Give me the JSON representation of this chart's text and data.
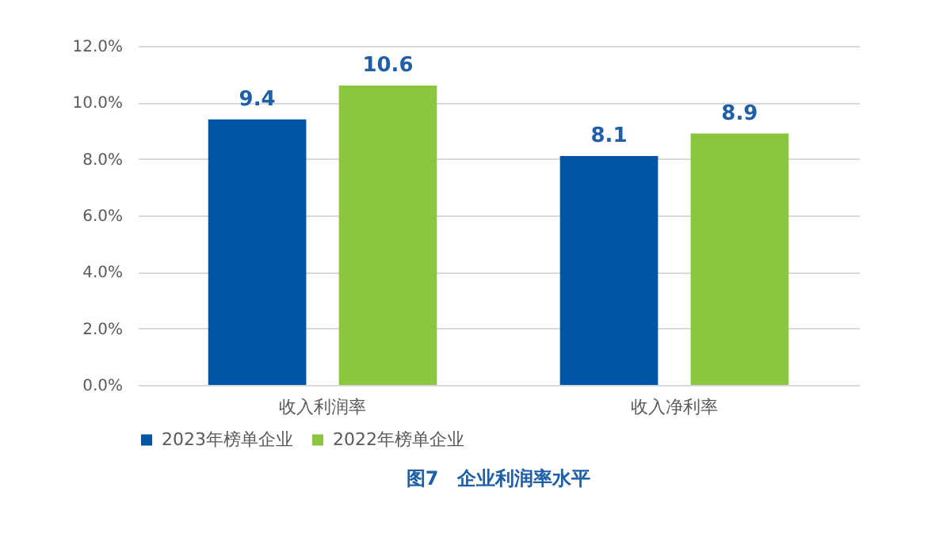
{
  "chart_data": {
    "type": "bar",
    "title": "图7　企业利润率水平",
    "categories": [
      "收入利润率",
      "收入净利率"
    ],
    "series": [
      {
        "name": "2023年榜单企业",
        "color": "#0056a4",
        "values": [
          9.4,
          8.1
        ]
      },
      {
        "name": "2022年榜单企业",
        "color": "#8cc63f",
        "values": [
          10.6,
          8.9
        ]
      }
    ],
    "ylim": [
      0,
      12
    ],
    "yticks": [
      {
        "value": 0,
        "label": "0.0%"
      },
      {
        "value": 2,
        "label": "2.0%"
      },
      {
        "value": 4,
        "label": "4.0%"
      },
      {
        "value": 6,
        "label": "6.0%"
      },
      {
        "value": 8,
        "label": "8.0%"
      },
      {
        "value": 10,
        "label": "10.0%"
      },
      {
        "value": 12,
        "label": "12.0%"
      }
    ],
    "grid": "y",
    "legend": "bottom",
    "data_labels": true
  }
}
